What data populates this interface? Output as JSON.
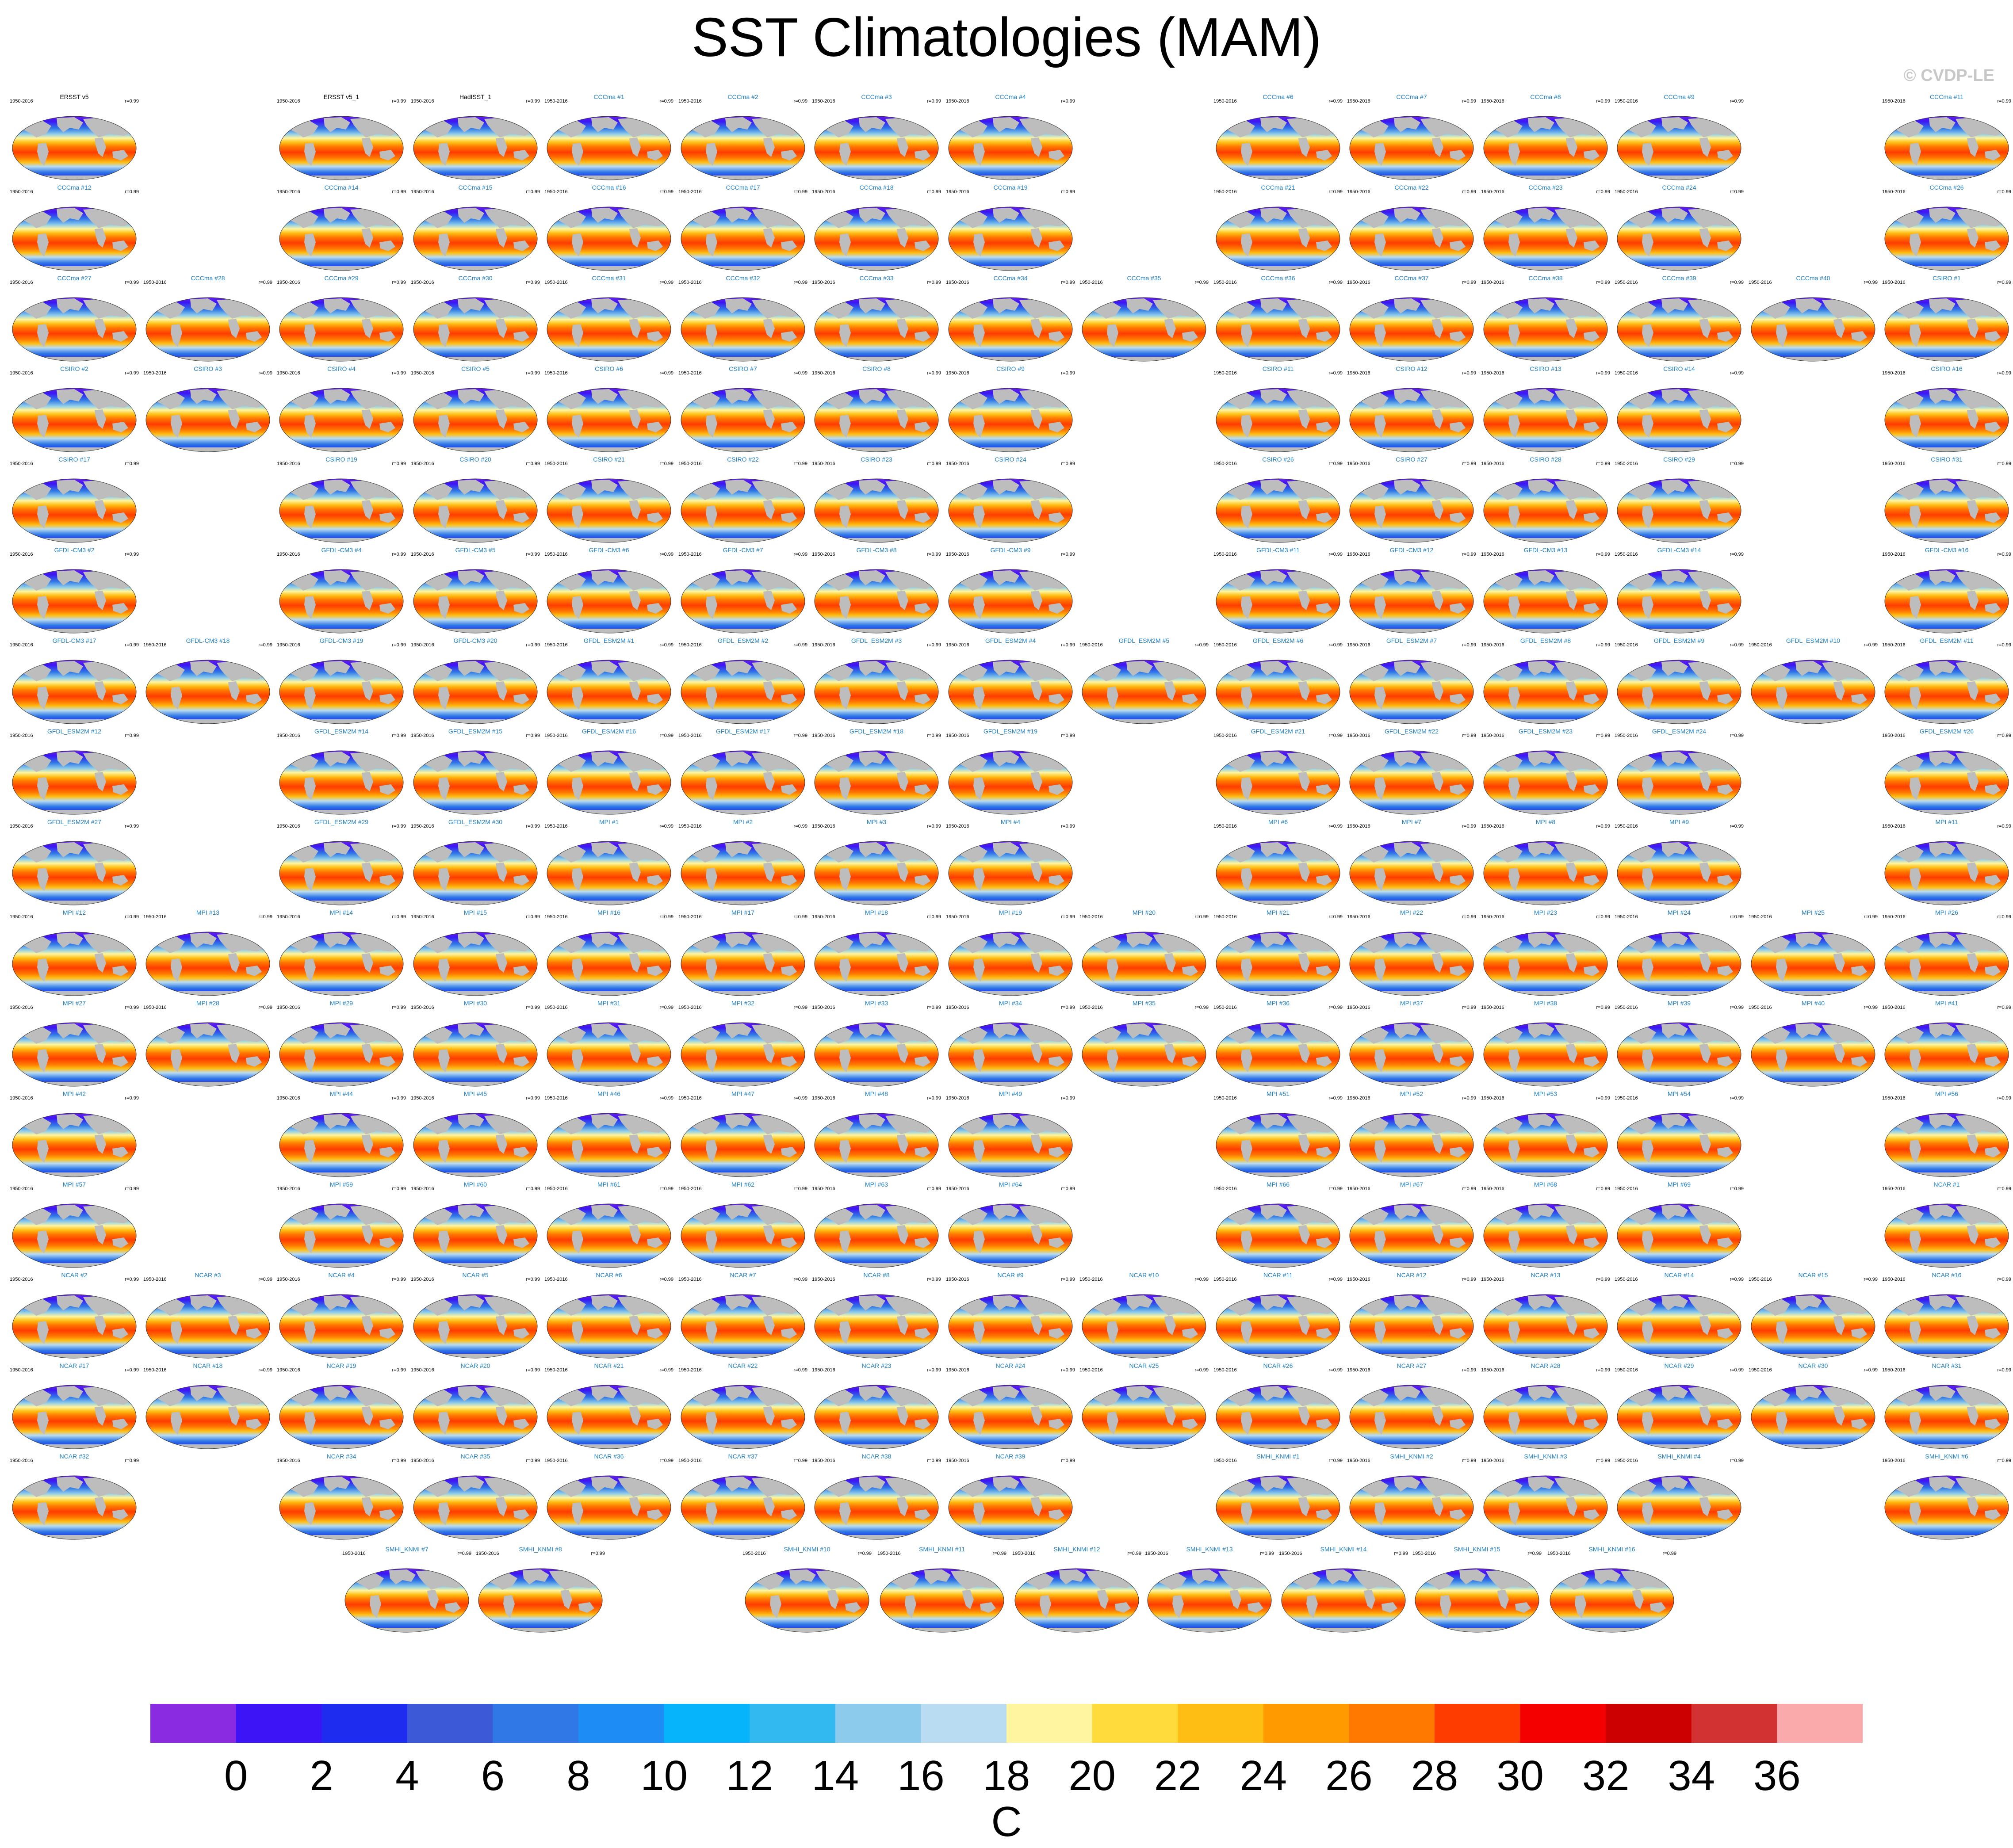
{
  "title": "SST Climatologies (MAM)",
  "credit": "© CVDP-LE",
  "chart_data": {
    "type": "heatmap",
    "title": "SST Climatologies (MAM)",
    "units": "C",
    "colorbar": {
      "ticks": [
        "0",
        "2",
        "4",
        "6",
        "8",
        "10",
        "12",
        "14",
        "16",
        "18",
        "20",
        "22",
        "24",
        "26",
        "28",
        "30",
        "32",
        "34",
        "36"
      ],
      "colors": [
        "#8a2be2",
        "#3c14f5",
        "#1e2cf0",
        "#3c5ad8",
        "#2f78e6",
        "#1e8cf5",
        "#05b4fa",
        "#32b9f0",
        "#8ccbeb",
        "#b9dcf2",
        "#fff5a0",
        "#ffdc3c",
        "#ffbe14",
        "#ff9b00",
        "#ff7800",
        "#ff3c00",
        "#f50000",
        "#cd0000",
        "#d23232",
        "#faaaaa"
      ]
    },
    "panels": [
      [
        "ERSST v5",
        "",
        "ERSST v5_1",
        "HadISST_1",
        "CCCma #1",
        "CCCma #2",
        "CCCma #3",
        "CCCma #4",
        "",
        "CCCma #6",
        "CCCma #7",
        "CCCma #8",
        "CCCma #9",
        "",
        "CCCma #11"
      ],
      [
        "CCCma #12",
        "",
        "CCCma #14",
        "CCCma #15",
        "CCCma #16",
        "CCCma #17",
        "CCCma #18",
        "CCCma #19",
        "",
        "CCCma #21",
        "CCCma #22",
        "CCCma #23",
        "CCCma #24",
        "",
        "CCCma #26"
      ],
      [
        "CCCma #27",
        "CCCma #28",
        "CCCma #29",
        "CCCma #30",
        "CCCma #31",
        "CCCma #32",
        "CCCma #33",
        "CCCma #34",
        "CCCma #35",
        "CCCma #36",
        "CCCma #37",
        "CCCma #38",
        "CCCma #39",
        "CCCma #40",
        "CSIRO #1"
      ],
      [
        "CSIRO #2",
        "CSIRO #3",
        "CSIRO #4",
        "CSIRO #5",
        "CSIRO #6",
        "CSIRO #7",
        "CSIRO #8",
        "CSIRO #9",
        "",
        "CSIRO #11",
        "CSIRO #12",
        "CSIRO #13",
        "CSIRO #14",
        "",
        "CSIRO #16"
      ],
      [
        "CSIRO #17",
        "",
        "CSIRO #19",
        "CSIRO #20",
        "CSIRO #21",
        "CSIRO #22",
        "CSIRO #23",
        "CSIRO #24",
        "",
        "CSIRO #26",
        "CSIRO #27",
        "CSIRO #28",
        "CSIRO #29",
        "",
        "CSIRO #31"
      ],
      [
        "GFDL-CM3 #2",
        "",
        "GFDL-CM3 #4",
        "GFDL-CM3 #5",
        "GFDL-CM3 #6",
        "GFDL-CM3 #7",
        "GFDL-CM3 #8",
        "GFDL-CM3 #9",
        "",
        "GFDL-CM3 #11",
        "GFDL-CM3 #12",
        "GFDL-CM3 #13",
        "GFDL-CM3 #14",
        "",
        "GFDL-CM3 #16"
      ],
      [
        "GFDL-CM3 #17",
        "GFDL-CM3 #18",
        "GFDL-CM3 #19",
        "GFDL-CM3 #20",
        "GFDL_ESM2M #1",
        "GFDL_ESM2M #2",
        "GFDL_ESM2M #3",
        "GFDL_ESM2M #4",
        "GFDL_ESM2M #5",
        "GFDL_ESM2M #6",
        "GFDL_ESM2M #7",
        "GFDL_ESM2M #8",
        "GFDL_ESM2M #9",
        "GFDL_ESM2M #10",
        "GFDL_ESM2M #11"
      ],
      [
        "GFDL_ESM2M #12",
        "",
        "GFDL_ESM2M #14",
        "GFDL_ESM2M #15",
        "GFDL_ESM2M #16",
        "GFDL_ESM2M #17",
        "GFDL_ESM2M #18",
        "GFDL_ESM2M #19",
        "",
        "GFDL_ESM2M #21",
        "GFDL_ESM2M #22",
        "GFDL_ESM2M #23",
        "GFDL_ESM2M #24",
        "",
        "GFDL_ESM2M #26"
      ],
      [
        "GFDL_ESM2M #27",
        "",
        "GFDL_ESM2M #29",
        "GFDL_ESM2M #30",
        "MPI #1",
        "MPI #2",
        "MPI #3",
        "MPI #4",
        "",
        "MPI #6",
        "MPI #7",
        "MPI #8",
        "MPI #9",
        "",
        "MPI #11"
      ],
      [
        "MPI #12",
        "MPI #13",
        "MPI #14",
        "MPI #15",
        "MPI #16",
        "MPI #17",
        "MPI #18",
        "MPI #19",
        "MPI #20",
        "MPI #21",
        "MPI #22",
        "MPI #23",
        "MPI #24",
        "MPI #25",
        "MPI #26"
      ],
      [
        "MPI #27",
        "MPI #28",
        "MPI #29",
        "MPI #30",
        "MPI #31",
        "MPI #32",
        "MPI #33",
        "MPI #34",
        "MPI #35",
        "MPI #36",
        "MPI #37",
        "MPI #38",
        "MPI #39",
        "MPI #40",
        "MPI #41"
      ],
      [
        "MPI #42",
        "",
        "MPI #44",
        "MPI #45",
        "MPI #46",
        "MPI #47",
        "MPI #48",
        "MPI #49",
        "",
        "MPI #51",
        "MPI #52",
        "MPI #53",
        "MPI #54",
        "",
        "MPI #56"
      ],
      [
        "MPI #57",
        "",
        "MPI #59",
        "MPI #60",
        "MPI #61",
        "MPI #62",
        "MPI #63",
        "MPI #64",
        "",
        "MPI #66",
        "MPI #67",
        "MPI #68",
        "MPI #69",
        "",
        "NCAR #1"
      ],
      [
        "NCAR #2",
        "NCAR #3",
        "NCAR #4",
        "NCAR #5",
        "NCAR #6",
        "NCAR #7",
        "NCAR #8",
        "NCAR #9",
        "NCAR #10",
        "NCAR #11",
        "NCAR #12",
        "NCAR #13",
        "NCAR #14",
        "NCAR #15",
        "NCAR #16"
      ],
      [
        "NCAR #17",
        "NCAR #18",
        "NCAR #19",
        "NCAR #20",
        "NCAR #21",
        "NCAR #22",
        "NCAR #23",
        "NCAR #24",
        "NCAR #25",
        "NCAR #26",
        "NCAR #27",
        "NCAR #28",
        "NCAR #29",
        "NCAR #30",
        "NCAR #31"
      ],
      [
        "NCAR #32",
        "",
        "NCAR #34",
        "NCAR #35",
        "NCAR #36",
        "NCAR #37",
        "NCAR #38",
        "NCAR #39",
        "",
        "SMHI_KNMI #1",
        "SMHI_KNMI #2",
        "SMHI_KNMI #3",
        "SMHI_KNMI #4",
        "",
        "SMHI_KNMI #6"
      ],
      [
        "",
        "",
        "SMHI_KNMI #7",
        "SMHI_KNMI #8",
        "",
        "SMHI_KNMI #10",
        "SMHI_KNMI #11",
        "SMHI_KNMI #12",
        "SMHI_KNMI #13",
        "SMHI_KNMI #14",
        "SMHI_KNMI #15",
        "SMHI_KNMI #16",
        "",
        "",
        ""
      ]
    ],
    "years": "1950-2016",
    "r_value": "r=0.99",
    "xlabel": "",
    "ylabel": ""
  }
}
